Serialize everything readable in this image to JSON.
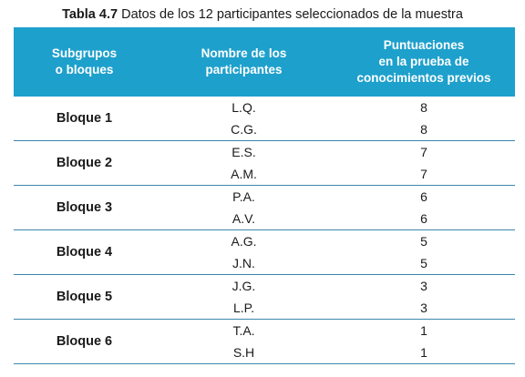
{
  "caption": {
    "number": "Tabla 4.7",
    "text": "Datos de los 12 participantes seleccionados de la muestra"
  },
  "headers": [
    [
      "Subgrupos",
      "o bloques"
    ],
    [
      "Nombre de  los",
      "participantes"
    ],
    [
      "Puntuaciones",
      "en la prueba de",
      "conocimientos previos"
    ]
  ],
  "blocks": [
    {
      "label": "Bloque 1",
      "rows": [
        {
          "name": "L.Q.",
          "score": "8"
        },
        {
          "name": "C.G.",
          "score": "8"
        }
      ]
    },
    {
      "label": "Bloque 2",
      "rows": [
        {
          "name": "E.S.",
          "score": "7"
        },
        {
          "name": "A.M.",
          "score": "7"
        }
      ]
    },
    {
      "label": "Bloque 3",
      "rows": [
        {
          "name": "P.A.",
          "score": "6"
        },
        {
          "name": "A.V.",
          "score": "6"
        }
      ]
    },
    {
      "label": "Bloque 4",
      "rows": [
        {
          "name": "A.G.",
          "score": "5"
        },
        {
          "name": "J.N.",
          "score": "5"
        }
      ]
    },
    {
      "label": "Bloque 5",
      "rows": [
        {
          "name": "J.G.",
          "score": "3"
        },
        {
          "name": "L.P.",
          "score": "3"
        }
      ]
    },
    {
      "label": "Bloque 6",
      "rows": [
        {
          "name": "T.A.",
          "score": "1"
        },
        {
          "name": "S.H",
          "score": "1"
        }
      ]
    }
  ],
  "colors": {
    "header_bg": "#1ea0cc",
    "rule": "#3a87ad"
  }
}
